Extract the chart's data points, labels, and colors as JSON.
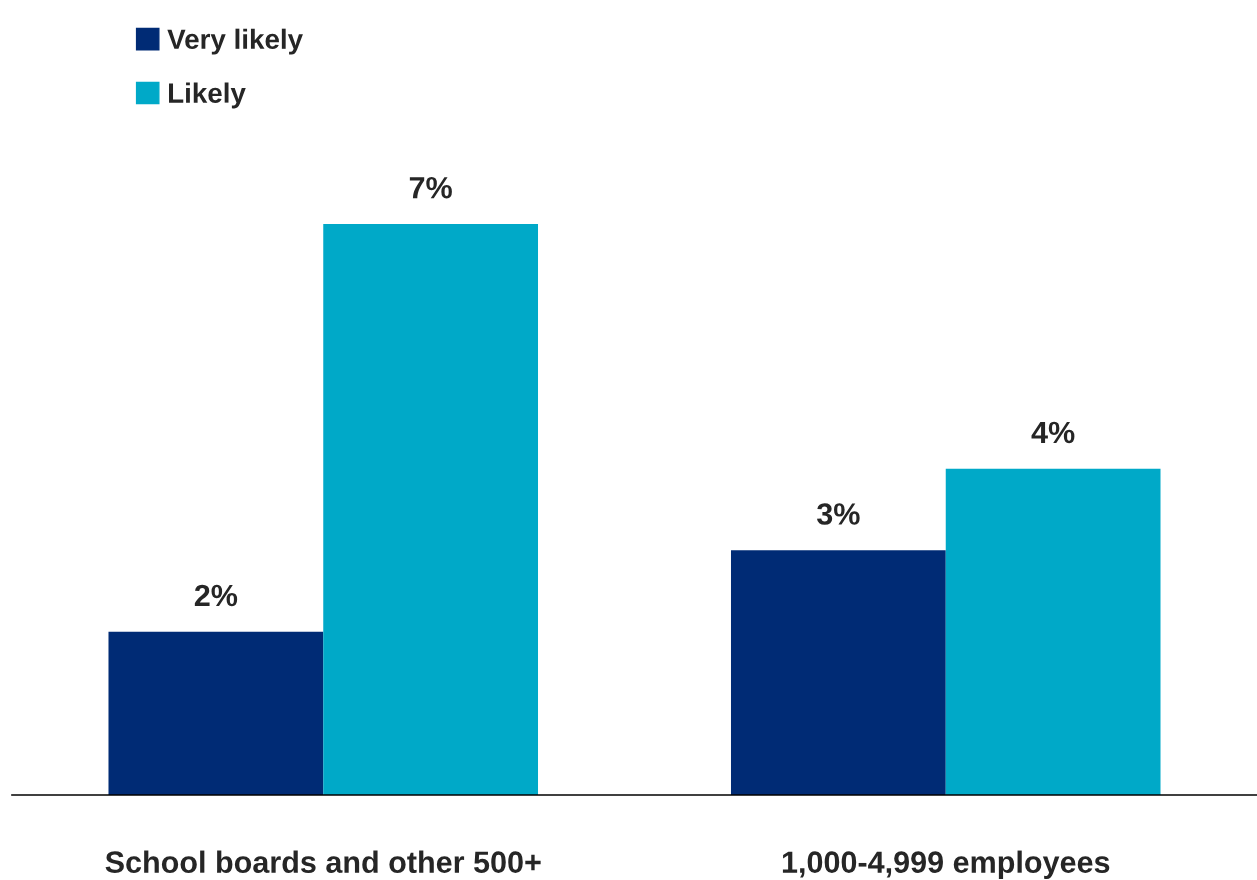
{
  "chart_data": {
    "type": "bar",
    "categories": [
      "School boards and other 500+",
      "1,000-4,999 employees"
    ],
    "series": [
      {
        "name": "Very likely",
        "color": "#002b75",
        "values": [
          2,
          3
        ],
        "value_labels": [
          "2%",
          "3%"
        ]
      },
      {
        "name": "Likely",
        "color": "#00a9c8",
        "values": [
          7,
          4
        ],
        "value_labels": [
          "7%",
          "4%"
        ]
      }
    ],
    "legend": "top left",
    "grid": false
  }
}
